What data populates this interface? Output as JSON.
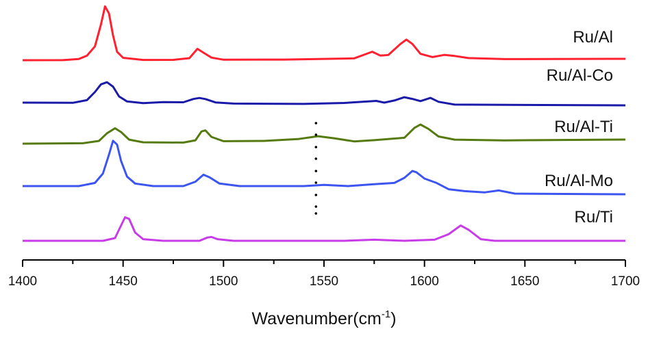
{
  "chart_data": {
    "type": "line",
    "xlabel": "Wavenumber(cm",
    "xlabel_sup": "-1",
    "xlabel_end": ")",
    "xlim": [
      1400,
      1700
    ],
    "xticks": [
      1400,
      1450,
      1500,
      1550,
      1600,
      1650,
      1700
    ],
    "ylabel": "",
    "y_axis_visible": false,
    "grid": false,
    "legend": "inline labels at right",
    "colors": {
      "Ru/Al": "#ff2030",
      "Ru/Al-Co": "#1a1aa8",
      "Ru/Al-Ti": "#557a10",
      "Ru/Al-Mo": "#3d55f0",
      "Ru/Ti": "#c83ce8",
      "axis": "#000000",
      "marker_dots": "#000000"
    },
    "series": [
      {
        "name": "Ru/Al",
        "baseline": 0.0,
        "points": [
          [
            1400,
            0.0
          ],
          [
            1420,
            0.0
          ],
          [
            1428,
            0.02
          ],
          [
            1432,
            0.08
          ],
          [
            1436,
            0.25
          ],
          [
            1439,
            0.65
          ],
          [
            1441,
            0.98
          ],
          [
            1443,
            0.85
          ],
          [
            1445,
            0.45
          ],
          [
            1447,
            0.15
          ],
          [
            1450,
            0.04
          ],
          [
            1460,
            0.0
          ],
          [
            1475,
            0.0
          ],
          [
            1483,
            0.03
          ],
          [
            1487,
            0.2
          ],
          [
            1490,
            0.13
          ],
          [
            1494,
            0.04
          ],
          [
            1500,
            0.0
          ],
          [
            1530,
            0.0
          ],
          [
            1565,
            0.02
          ],
          [
            1571,
            0.1
          ],
          [
            1574,
            0.14
          ],
          [
            1578,
            0.07
          ],
          [
            1582,
            0.08
          ],
          [
            1588,
            0.28
          ],
          [
            1591,
            0.36
          ],
          [
            1594,
            0.28
          ],
          [
            1598,
            0.1
          ],
          [
            1604,
            0.04
          ],
          [
            1610,
            0.08
          ],
          [
            1615,
            0.06
          ],
          [
            1622,
            0.02
          ],
          [
            1640,
            0.0
          ],
          [
            1700,
            0.0
          ]
        ]
      },
      {
        "name": "Ru/Al-Co",
        "baseline": 0.0,
        "points": [
          [
            1400,
            0.0
          ],
          [
            1425,
            0.0
          ],
          [
            1432,
            0.05
          ],
          [
            1436,
            0.2
          ],
          [
            1439,
            0.34
          ],
          [
            1442,
            0.38
          ],
          [
            1445,
            0.3
          ],
          [
            1448,
            0.12
          ],
          [
            1452,
            0.03
          ],
          [
            1460,
            0.0
          ],
          [
            1470,
            0.02
          ],
          [
            1480,
            0.02
          ],
          [
            1485,
            0.08
          ],
          [
            1488,
            0.1
          ],
          [
            1491,
            0.08
          ],
          [
            1496,
            0.02
          ],
          [
            1505,
            0.0
          ],
          [
            1540,
            0.0
          ],
          [
            1560,
            0.02
          ],
          [
            1572,
            0.05
          ],
          [
            1576,
            0.06
          ],
          [
            1580,
            0.03
          ],
          [
            1585,
            0.07
          ],
          [
            1590,
            0.13
          ],
          [
            1594,
            0.1
          ],
          [
            1598,
            0.06
          ],
          [
            1603,
            0.12
          ],
          [
            1607,
            0.05
          ],
          [
            1615,
            0.0
          ],
          [
            1700,
            0.0
          ]
        ]
      },
      {
        "name": "Ru/Al-Ti",
        "baseline": 0.0,
        "points": [
          [
            1400,
            0.0
          ],
          [
            1430,
            0.0
          ],
          [
            1438,
            0.04
          ],
          [
            1442,
            0.18
          ],
          [
            1446,
            0.27
          ],
          [
            1449,
            0.2
          ],
          [
            1453,
            0.06
          ],
          [
            1460,
            0.01
          ],
          [
            1480,
            0.0
          ],
          [
            1486,
            0.04
          ],
          [
            1489,
            0.2
          ],
          [
            1491,
            0.22
          ],
          [
            1494,
            0.1
          ],
          [
            1500,
            0.02
          ],
          [
            1520,
            0.02
          ],
          [
            1537,
            0.05
          ],
          [
            1547,
            0.1
          ],
          [
            1555,
            0.06
          ],
          [
            1565,
            0.0
          ],
          [
            1575,
            0.02
          ],
          [
            1590,
            0.06
          ],
          [
            1595,
            0.24
          ],
          [
            1598,
            0.3
          ],
          [
            1602,
            0.22
          ],
          [
            1607,
            0.08
          ],
          [
            1615,
            0.02
          ],
          [
            1640,
            0.0
          ],
          [
            1700,
            0.0
          ]
        ]
      },
      {
        "name": "Ru/Al-Mo",
        "baseline": 0.0,
        "points": [
          [
            1400,
            0.0
          ],
          [
            1428,
            0.0
          ],
          [
            1436,
            0.05
          ],
          [
            1440,
            0.2
          ],
          [
            1443,
            0.5
          ],
          [
            1445,
            0.72
          ],
          [
            1447,
            0.66
          ],
          [
            1449,
            0.4
          ],
          [
            1452,
            0.15
          ],
          [
            1456,
            0.04
          ],
          [
            1465,
            0.0
          ],
          [
            1480,
            0.0
          ],
          [
            1486,
            0.07
          ],
          [
            1490,
            0.18
          ],
          [
            1493,
            0.14
          ],
          [
            1498,
            0.04
          ],
          [
            1508,
            0.0
          ],
          [
            1540,
            0.0
          ],
          [
            1550,
            0.02
          ],
          [
            1562,
            0.0
          ],
          [
            1575,
            0.03
          ],
          [
            1585,
            0.05
          ],
          [
            1590,
            0.13
          ],
          [
            1594,
            0.24
          ],
          [
            1596,
            0.22
          ],
          [
            1600,
            0.12
          ],
          [
            1606,
            0.05
          ],
          [
            1612,
            -0.05
          ],
          [
            1620,
            -0.08
          ],
          [
            1630,
            -0.1
          ],
          [
            1637,
            -0.07
          ],
          [
            1645,
            -0.12
          ],
          [
            1700,
            -0.13
          ]
        ]
      },
      {
        "name": "Ru/Ti",
        "baseline": 0.0,
        "points": [
          [
            1400,
            0.0
          ],
          [
            1440,
            0.0
          ],
          [
            1446,
            0.05
          ],
          [
            1449,
            0.28
          ],
          [
            1451,
            0.43
          ],
          [
            1453,
            0.4
          ],
          [
            1456,
            0.15
          ],
          [
            1460,
            0.03
          ],
          [
            1470,
            0.0
          ],
          [
            1488,
            0.0
          ],
          [
            1492,
            0.06
          ],
          [
            1494,
            0.07
          ],
          [
            1497,
            0.03
          ],
          [
            1505,
            0.0
          ],
          [
            1560,
            0.0
          ],
          [
            1575,
            0.02
          ],
          [
            1590,
            0.0
          ],
          [
            1605,
            0.02
          ],
          [
            1612,
            0.12
          ],
          [
            1618,
            0.28
          ],
          [
            1622,
            0.2
          ],
          [
            1628,
            0.03
          ],
          [
            1635,
            0.0
          ],
          [
            1700,
            0.0
          ]
        ]
      }
    ],
    "marker_dots_x": 1546
  }
}
